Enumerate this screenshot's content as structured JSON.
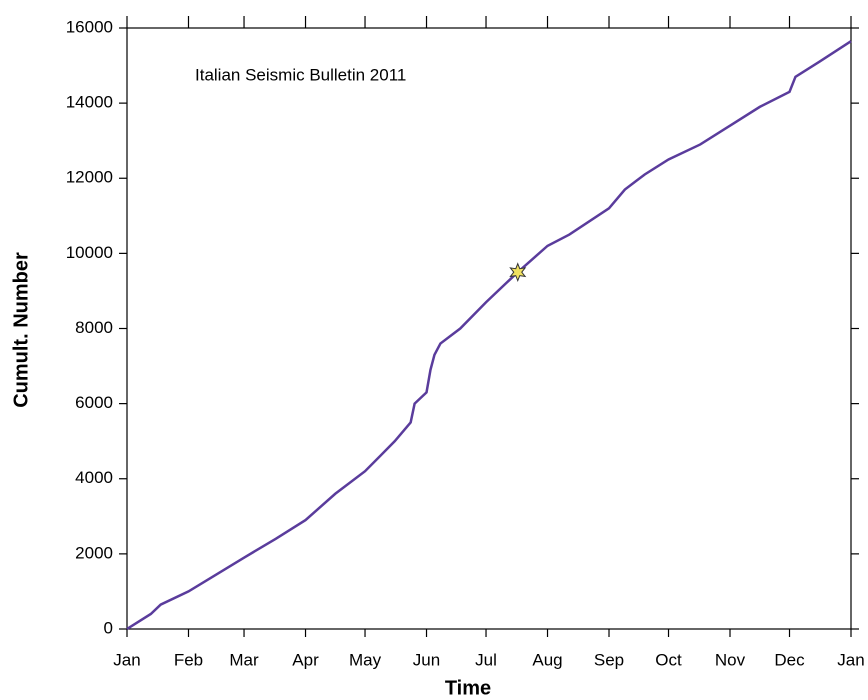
{
  "chart_data": {
    "type": "line",
    "annotation": "Italian Seismic Bulletin 2011",
    "x_label": "Time",
    "y_label": "Cumult. Number",
    "xlim": [
      0,
      365
    ],
    "xticks": [
      {
        "value": 0,
        "label": "Jan"
      },
      {
        "value": 31,
        "label": "Feb"
      },
      {
        "value": 59,
        "label": "Mar"
      },
      {
        "value": 90,
        "label": "Apr"
      },
      {
        "value": 120,
        "label": "May"
      },
      {
        "value": 151,
        "label": "Jun"
      },
      {
        "value": 181,
        "label": "Jul"
      },
      {
        "value": 212,
        "label": "Aug"
      },
      {
        "value": 243,
        "label": "Sep"
      },
      {
        "value": 273,
        "label": "Oct"
      },
      {
        "value": 304,
        "label": "Nov"
      },
      {
        "value": 334,
        "label": "Dec"
      },
      {
        "value": 365,
        "label": "Jan"
      }
    ],
    "ylim": [
      0,
      16000
    ],
    "yticks": [
      0,
      2000,
      4000,
      6000,
      8000,
      10000,
      12000,
      14000,
      16000
    ],
    "grid": false,
    "series": [
      {
        "color": "#5a3c9c",
        "x": [
          0,
          12,
          17,
          31,
          45,
          59,
          75,
          90,
          105,
          120,
          135,
          143,
          145,
          148,
          151,
          153,
          155,
          158,
          168,
          181,
          193,
          197,
          212,
          223,
          243,
          251,
          261,
          273,
          289,
          304,
          319,
          334,
          337,
          349,
          365
        ],
        "values": [
          0,
          400,
          650,
          1000,
          1450,
          1900,
          2400,
          2900,
          3600,
          4200,
          5000,
          5500,
          6000,
          6150,
          6300,
          6900,
          7300,
          7600,
          8000,
          8700,
          9300,
          9500,
          10200,
          10500,
          11200,
          11700,
          12100,
          12500,
          12900,
          13400,
          13900,
          14300,
          14700,
          15100,
          15650
        ]
      }
    ],
    "highlight": {
      "x": 197,
      "y": 9500,
      "color": "#f0e060"
    }
  }
}
